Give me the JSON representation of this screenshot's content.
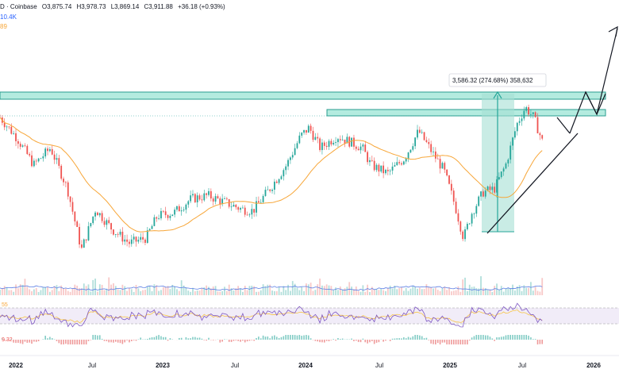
{
  "header": {
    "symbol_fragment": "D · Coinbase",
    "open": "O3,875.74",
    "high": "H3,978.73",
    "low": "L3,869.14",
    "close": "C3,911.88",
    "change": "+36.18 (+0.93%)",
    "volume_fragment": "10.4K",
    "ma_fragment": "89"
  },
  "measure_label": "3,586.32 (274.68%) 358,632",
  "rsi_label_fragment": "55",
  "macd_label_fragment": "9.32",
  "colors": {
    "up": "#26a69a",
    "down": "#ef5350",
    "ma": "#f7a638",
    "zone_fill": "#9be4d4",
    "zone_stroke": "#2a9d8f",
    "rsi_line": "#7e57c2",
    "rsi_ma": "#f7c548",
    "vol_ma": "#5b7ee5",
    "measure": "#26a69a"
  },
  "chart_data": {
    "type": "candlestick",
    "x_axis_labels": [
      "2022",
      "Jul",
      "2023",
      "Jul",
      "2024",
      "Jul",
      "2025",
      "Jul",
      "2026"
    ],
    "ohlc_shown": {
      "open": 3875.74,
      "high": 3978.73,
      "low": 3869.14,
      "close": 3911.88
    },
    "change": 36.18,
    "change_pct": 0.93,
    "price_path": [
      {
        "t": 0.0,
        "p": 0.86
      },
      {
        "t": 0.03,
        "p": 0.74
      },
      {
        "t": 0.06,
        "p": 0.58
      },
      {
        "t": 0.09,
        "p": 0.68
      },
      {
        "t": 0.12,
        "p": 0.44
      },
      {
        "t": 0.145,
        "p": 0.08
      },
      {
        "t": 0.17,
        "p": 0.32
      },
      {
        "t": 0.2,
        "p": 0.2
      },
      {
        "t": 0.23,
        "p": 0.12
      },
      {
        "t": 0.26,
        "p": 0.15
      },
      {
        "t": 0.28,
        "p": 0.28
      },
      {
        "t": 0.31,
        "p": 0.3
      },
      {
        "t": 0.34,
        "p": 0.38
      },
      {
        "t": 0.37,
        "p": 0.4
      },
      {
        "t": 0.4,
        "p": 0.36
      },
      {
        "t": 0.43,
        "p": 0.32
      },
      {
        "t": 0.45,
        "p": 0.31
      },
      {
        "t": 0.48,
        "p": 0.44
      },
      {
        "t": 0.51,
        "p": 0.58
      },
      {
        "t": 0.535,
        "p": 0.75
      },
      {
        "t": 0.55,
        "p": 0.8
      },
      {
        "t": 0.57,
        "p": 0.68
      },
      {
        "t": 0.6,
        "p": 0.75
      },
      {
        "t": 0.62,
        "p": 0.72
      },
      {
        "t": 0.645,
        "p": 0.68
      },
      {
        "t": 0.66,
        "p": 0.58
      },
      {
        "t": 0.69,
        "p": 0.53
      },
      {
        "t": 0.72,
        "p": 0.62
      },
      {
        "t": 0.745,
        "p": 0.78
      },
      {
        "t": 0.77,
        "p": 0.65
      },
      {
        "t": 0.79,
        "p": 0.55
      },
      {
        "t": 0.81,
        "p": 0.34
      },
      {
        "t": 0.825,
        "p": 0.15
      },
      {
        "t": 0.84,
        "p": 0.3
      },
      {
        "t": 0.86,
        "p": 0.42
      },
      {
        "t": 0.88,
        "p": 0.44
      },
      {
        "t": 0.9,
        "p": 0.58
      },
      {
        "t": 0.92,
        "p": 0.82
      },
      {
        "t": 0.935,
        "p": 0.92
      },
      {
        "t": 0.95,
        "p": 0.86
      },
      {
        "t": 0.965,
        "p": 0.72
      }
    ],
    "grid": false
  }
}
